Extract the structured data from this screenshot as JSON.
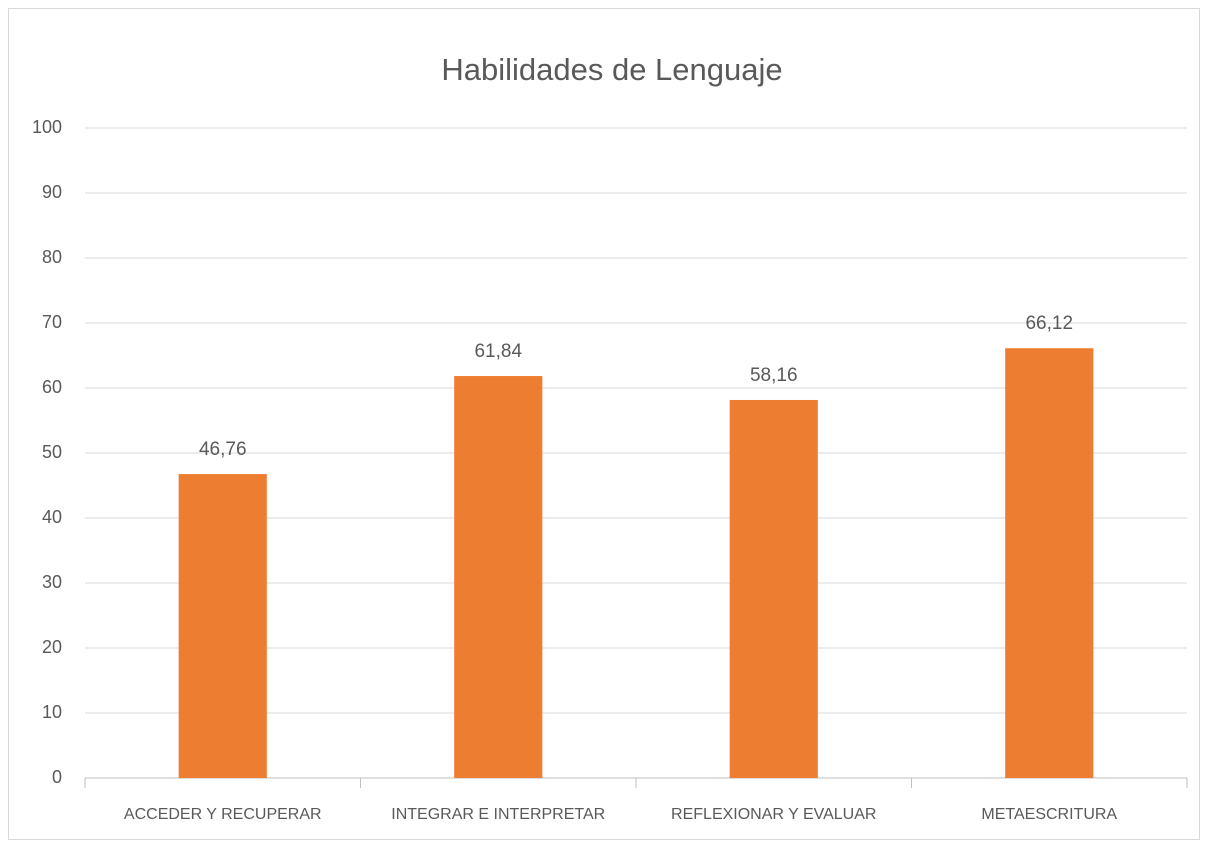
{
  "chart_data": {
    "type": "bar",
    "title": "Habilidades de Lenguaje",
    "categories": [
      "ACCEDER Y RECUPERAR",
      "INTEGRAR E INTERPRETAR",
      "REFLEXIONAR Y EVALUAR",
      "METAESCRITURA"
    ],
    "values": [
      46.76,
      61.84,
      58.16,
      66.12
    ],
    "value_labels": [
      "46,76",
      "61,84",
      "58,16",
      "66,12"
    ],
    "color": "#ed7d31",
    "ylim": [
      0,
      100
    ],
    "yticks": [
      0,
      10,
      20,
      30,
      40,
      50,
      60,
      70,
      80,
      90,
      100
    ],
    "grid": true
  }
}
